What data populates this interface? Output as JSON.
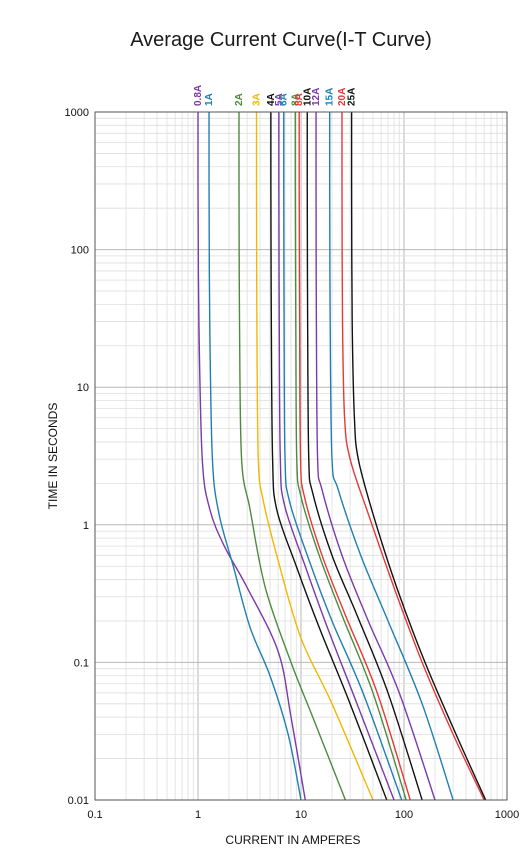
{
  "chart_data": {
    "type": "line",
    "title": "Average Current Curve(I-T Curve)",
    "xlabel": "CURRENT IN AMPERES",
    "ylabel": "TIME IN SECONDS",
    "xscale": "log",
    "yscale": "log",
    "xlim": [
      0.1,
      1000
    ],
    "ylim": [
      0.01,
      1000
    ],
    "grid": true,
    "xticks": [
      "0.1",
      "1",
      "10",
      "100",
      "1000"
    ],
    "yticks": [
      "0.01",
      "0.1",
      "1",
      "10",
      "100",
      "1000"
    ],
    "series": [
      {
        "name": "0.8A",
        "color": "#7a3aa8",
        "points": [
          [
            1.0,
            1000
          ],
          [
            1.0,
            300
          ],
          [
            1.02,
            30
          ],
          [
            1.1,
            3
          ],
          [
            1.3,
            1.3
          ],
          [
            1.8,
            0.7
          ],
          [
            3,
            0.35
          ],
          [
            6,
            0.12
          ],
          [
            8,
            0.04
          ],
          [
            11,
            0.01
          ]
        ]
      },
      {
        "name": "1A",
        "color": "#1f7fb0",
        "points": [
          [
            1.28,
            1000
          ],
          [
            1.28,
            300
          ],
          [
            1.3,
            30
          ],
          [
            1.38,
            3
          ],
          [
            1.6,
            1.2
          ],
          [
            2.2,
            0.5
          ],
          [
            3.2,
            0.18
          ],
          [
            5,
            0.08
          ],
          [
            7.5,
            0.03
          ],
          [
            10,
            0.01
          ]
        ]
      },
      {
        "name": "2A",
        "color": "#4e8a3c",
        "points": [
          [
            2.5,
            1000
          ],
          [
            2.5,
            300
          ],
          [
            2.53,
            30
          ],
          [
            2.65,
            3
          ],
          [
            3.2,
            1.3
          ],
          [
            4.5,
            0.35
          ],
          [
            8,
            0.1
          ],
          [
            13,
            0.04
          ],
          [
            27,
            0.01
          ]
        ]
      },
      {
        "name": "3A",
        "color": "#f0b800",
        "points": [
          [
            3.7,
            1000
          ],
          [
            3.7,
            300
          ],
          [
            3.73,
            30
          ],
          [
            3.85,
            3
          ],
          [
            4.3,
            1.5
          ],
          [
            6,
            0.55
          ],
          [
            10,
            0.15
          ],
          [
            20,
            0.05
          ],
          [
            50,
            0.01
          ]
        ]
      },
      {
        "name": "4A",
        "color": "#111111",
        "points": [
          [
            5.1,
            1000
          ],
          [
            5.1,
            300
          ],
          [
            5.15,
            30
          ],
          [
            5.3,
            3
          ],
          [
            5.8,
            1.3
          ],
          [
            9,
            0.5
          ],
          [
            15,
            0.18
          ],
          [
            30,
            0.05
          ],
          [
            68,
            0.01
          ]
        ]
      },
      {
        "name": "5A",
        "color": "#7a3aa8",
        "points": [
          [
            6.1,
            1000
          ],
          [
            6.1,
            300
          ],
          [
            6.15,
            30
          ],
          [
            6.3,
            3
          ],
          [
            6.9,
            1.4
          ],
          [
            11,
            0.5
          ],
          [
            18,
            0.18
          ],
          [
            35,
            0.05
          ],
          [
            80,
            0.01
          ]
        ]
      },
      {
        "name": "6A",
        "color": "#1f7fb0",
        "points": [
          [
            6.8,
            1000
          ],
          [
            6.8,
            300
          ],
          [
            6.85,
            30
          ],
          [
            7.0,
            3
          ],
          [
            7.7,
            1.5
          ],
          [
            12,
            0.55
          ],
          [
            20,
            0.2
          ],
          [
            40,
            0.06
          ],
          [
            95,
            0.01
          ]
        ]
      },
      {
        "name": "8A",
        "color": "#4e8a3c",
        "points": [
          [
            8.8,
            1000
          ],
          [
            8.8,
            300
          ],
          [
            8.9,
            30
          ],
          [
            9.1,
            3
          ],
          [
            10,
            1.6
          ],
          [
            15,
            0.6
          ],
          [
            25,
            0.22
          ],
          [
            50,
            0.06
          ],
          [
            105,
            0.01
          ]
        ]
      },
      {
        "name": "8A",
        "color": "#e53935",
        "points": [
          [
            9.6,
            1000
          ],
          [
            9.6,
            300
          ],
          [
            9.7,
            30
          ],
          [
            9.9,
            3
          ],
          [
            10.8,
            1.6
          ],
          [
            16,
            0.6
          ],
          [
            27,
            0.22
          ],
          [
            55,
            0.06
          ],
          [
            115,
            0.01
          ]
        ]
      },
      {
        "name": "10A",
        "color": "#111111",
        "points": [
          [
            11.5,
            1000
          ],
          [
            11.5,
            300
          ],
          [
            11.6,
            30
          ],
          [
            11.9,
            3
          ],
          [
            13,
            1.7
          ],
          [
            20,
            0.6
          ],
          [
            35,
            0.22
          ],
          [
            70,
            0.06
          ],
          [
            150,
            0.01
          ]
        ]
      },
      {
        "name": "12A",
        "color": "#7a3aa8",
        "points": [
          [
            14,
            1000
          ],
          [
            14,
            300
          ],
          [
            14.1,
            30
          ],
          [
            14.5,
            3
          ],
          [
            16,
            1.8
          ],
          [
            25,
            0.6
          ],
          [
            45,
            0.2
          ],
          [
            90,
            0.06
          ],
          [
            200,
            0.01
          ]
        ]
      },
      {
        "name": "15A",
        "color": "#1f7fb0",
        "points": [
          [
            19,
            1000
          ],
          [
            19,
            300
          ],
          [
            19.2,
            30
          ],
          [
            20,
            3
          ],
          [
            23,
            1.8
          ],
          [
            38,
            0.6
          ],
          [
            70,
            0.2
          ],
          [
            150,
            0.05
          ],
          [
            300,
            0.01
          ]
        ]
      },
      {
        "name": "20A",
        "color": "#e53935",
        "points": [
          [
            25,
            1000
          ],
          [
            25,
            300
          ],
          [
            25.3,
            30
          ],
          [
            26.5,
            6
          ],
          [
            30,
            3
          ],
          [
            45,
            1.2
          ],
          [
            80,
            0.35
          ],
          [
            150,
            0.1
          ],
          [
            300,
            0.03
          ],
          [
            600,
            0.01
          ]
        ]
      },
      {
        "name": "25A",
        "color": "#111111",
        "points": [
          [
            31,
            1000
          ],
          [
            31,
            300
          ],
          [
            31.4,
            30
          ],
          [
            33,
            6
          ],
          [
            36,
            3
          ],
          [
            50,
            1.2
          ],
          [
            85,
            0.35
          ],
          [
            160,
            0.1
          ],
          [
            320,
            0.03
          ],
          [
            620,
            0.01
          ]
        ]
      }
    ]
  }
}
